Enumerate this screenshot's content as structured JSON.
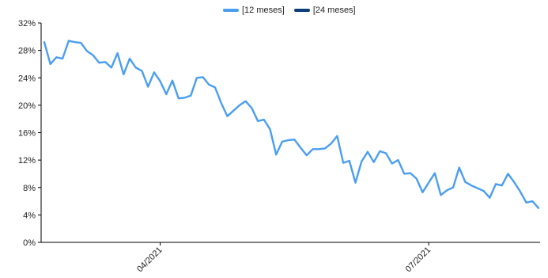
{
  "chart_data": {
    "type": "line",
    "title": "",
    "xlabel": "",
    "ylabel": "",
    "x_tick_labels": [
      "04/2021",
      "07/2021"
    ],
    "ylim": [
      0,
      32
    ],
    "y_ticks": [
      0,
      4,
      8,
      12,
      16,
      20,
      24,
      28,
      32
    ],
    "y_tick_labels": [
      "0%",
      "4%",
      "8%",
      "12%",
      "16%",
      "20%",
      "24%",
      "28%",
      "32%"
    ],
    "grid": false,
    "legend_position": "top-center",
    "series": [
      {
        "name": "[12 meses]",
        "color": "#4a9ef0",
        "values": [
          29.2,
          26.0,
          27.0,
          26.8,
          29.4,
          29.2,
          29.1,
          27.9,
          27.3,
          26.2,
          26.3,
          25.5,
          27.6,
          24.5,
          26.8,
          25.5,
          25.0,
          22.7,
          24.8,
          23.5,
          21.6,
          23.6,
          21.0,
          21.1,
          21.4,
          24.0,
          24.1,
          23.0,
          22.6,
          20.3,
          18.4,
          19.2,
          20.0,
          20.6,
          19.6,
          17.7,
          17.9,
          16.5,
          12.8,
          14.7,
          14.9,
          15.0,
          13.8,
          12.7,
          13.6,
          13.6,
          13.7,
          14.4,
          15.5,
          11.6,
          11.9,
          8.7,
          11.8,
          13.2,
          11.7,
          13.3,
          13.0,
          11.5,
          12.0,
          10.0,
          10.1,
          9.3,
          7.3,
          8.7,
          10.1,
          6.9,
          7.6,
          8.0,
          10.9,
          8.8,
          8.3,
          7.9,
          7.5,
          6.5,
          8.5,
          8.3,
          10.0,
          8.8,
          7.4,
          5.8,
          6.0,
          5.0
        ]
      },
      {
        "name": "[24 meses]",
        "color": "#0b3d78",
        "values": []
      }
    ]
  }
}
